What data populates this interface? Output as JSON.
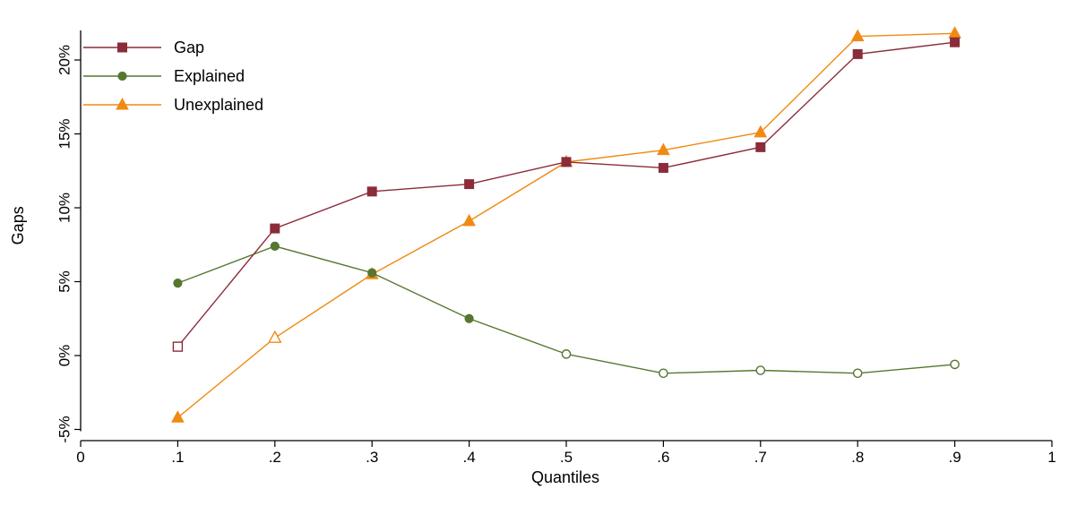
{
  "chart_data": {
    "type": "line",
    "title": "",
    "xlabel": "Quantiles",
    "ylabel": "Gaps",
    "xlim": [
      0,
      1
    ],
    "ylim": [
      -5,
      22
    ],
    "x_ticks": [
      0,
      0.1,
      0.2,
      0.3,
      0.4,
      0.5,
      0.6,
      0.7,
      0.8,
      0.9,
      1
    ],
    "x_tick_labels": [
      "0",
      ".1",
      ".2",
      ".3",
      ".4",
      ".5",
      ".6",
      ".7",
      ".8",
      ".9",
      "1"
    ],
    "y_ticks": [
      -5,
      0,
      5,
      10,
      15,
      20
    ],
    "y_tick_labels": [
      "-5%",
      "0%",
      "5%",
      "10%",
      "15%",
      "20%"
    ],
    "grid": false,
    "legend_position": "top-left",
    "x": [
      0.1,
      0.2,
      0.3,
      0.4,
      0.5,
      0.6,
      0.7,
      0.8,
      0.9
    ],
    "series": [
      {
        "name": "Gap",
        "color": "#8b2c3b",
        "marker": "square",
        "values": [
          0.6,
          8.6,
          11.1,
          11.6,
          13.1,
          12.7,
          14.1,
          20.4,
          21.2
        ],
        "hollow": [
          true,
          false,
          false,
          false,
          false,
          false,
          false,
          false,
          false
        ]
      },
      {
        "name": "Explained",
        "color": "#56772f",
        "marker": "circle",
        "values": [
          4.9,
          7.4,
          5.6,
          2.5,
          0.1,
          -1.2,
          -1.0,
          -1.2,
          -0.6
        ],
        "hollow": [
          false,
          false,
          false,
          false,
          true,
          true,
          true,
          true,
          true
        ]
      },
      {
        "name": "Unexplained",
        "color": "#f08a12",
        "marker": "triangle",
        "values": [
          -4.2,
          1.2,
          5.5,
          9.1,
          13.1,
          13.9,
          15.1,
          21.6,
          21.8
        ],
        "hollow": [
          false,
          true,
          false,
          false,
          false,
          false,
          false,
          false,
          false
        ]
      }
    ]
  }
}
